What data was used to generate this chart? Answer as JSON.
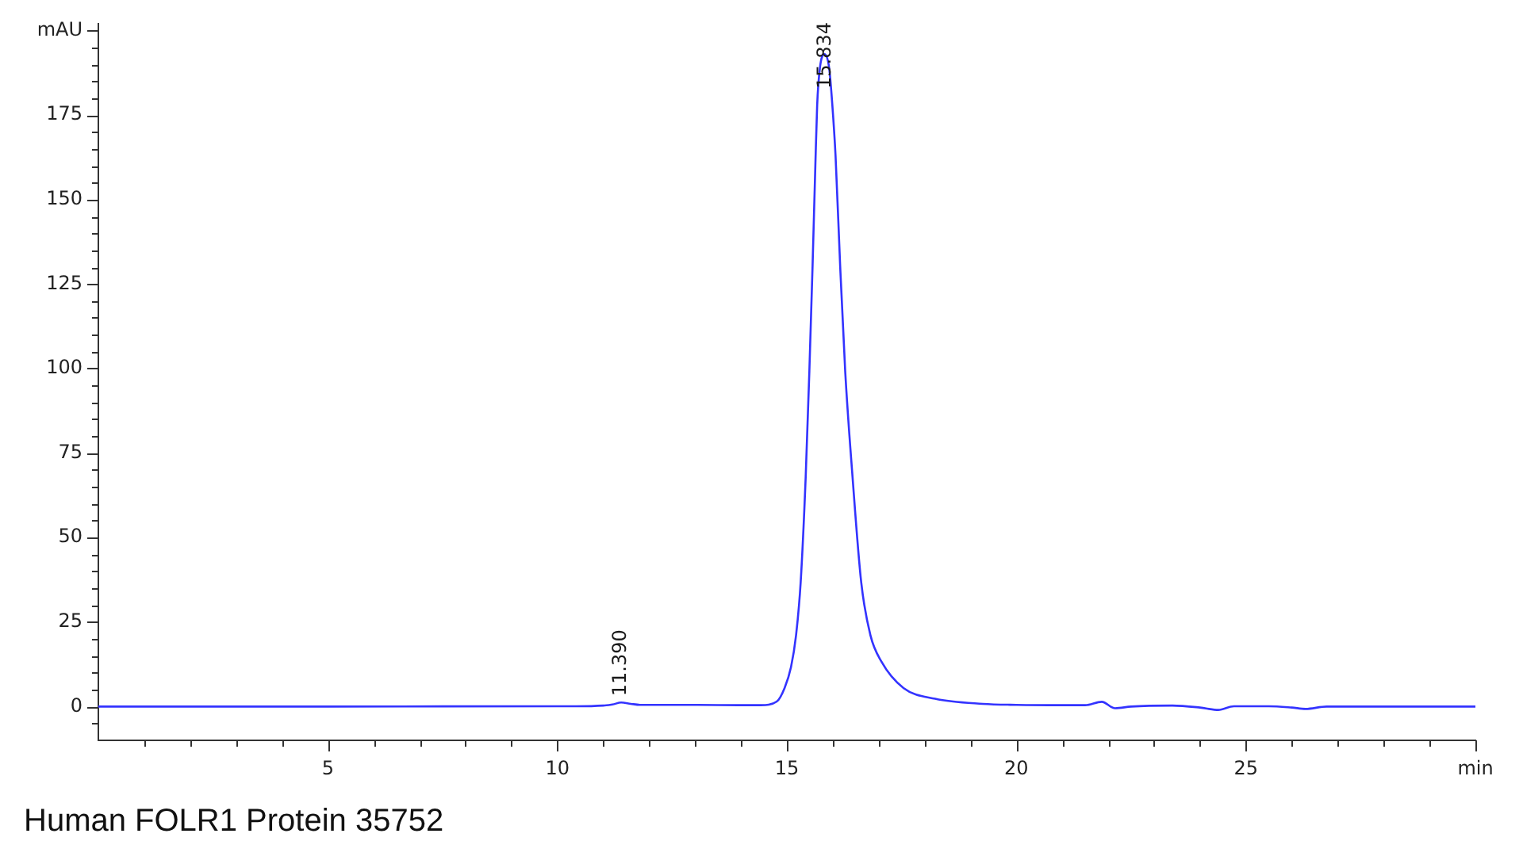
{
  "chart_data": {
    "type": "line",
    "x": [
      0,
      5,
      10,
      10.4,
      11.0,
      11.2,
      11.39,
      11.6,
      11.8,
      13.0,
      14.0,
      14.43,
      14.78,
      14.95,
      15.09,
      15.2,
      15.3,
      15.41,
      15.49,
      15.56,
      15.62,
      15.66,
      15.72,
      15.82,
      15.92,
      15.99,
      16.06,
      16.16,
      16.27,
      16.43,
      16.62,
      16.82,
      17.06,
      17.54,
      18.23,
      19.27,
      20.0,
      21.0,
      21.5,
      21.86,
      22.15,
      22.5,
      23.4,
      24.0,
      24.4,
      24.74,
      25.5,
      26.0,
      26.3,
      26.76,
      28.0,
      30.0
    ],
    "values": [
      0,
      0,
      0.1,
      0.1,
      0.3,
      0.6,
      1.2,
      0.8,
      0.5,
      0.5,
      0.4,
      0.4,
      1.5,
      5.5,
      11.7,
      21.1,
      36.7,
      68,
      99.3,
      130.6,
      160,
      178,
      189,
      193,
      189,
      178,
      163,
      130.6,
      99.3,
      68,
      36.7,
      21.1,
      13.3,
      5.5,
      2.3,
      0.8,
      0.5,
      0.4,
      0.4,
      1.4,
      -0.5,
      0,
      0.3,
      -0.3,
      -1.0,
      0.1,
      0.1,
      -0.3,
      -0.7,
      0,
      0,
      0
    ],
    "color": "#3333ff",
    "xlim": [
      0,
      30
    ],
    "xticks": [
      {
        "value": 1,
        "label": null
      },
      {
        "value": 2,
        "label": null
      },
      {
        "value": 3,
        "label": null
      },
      {
        "value": 4,
        "label": null
      },
      5,
      {
        "value": 6,
        "label": null
      },
      {
        "value": 7,
        "label": null
      },
      {
        "value": 8,
        "label": null
      },
      {
        "value": 9,
        "label": null
      },
      10,
      {
        "value": 11,
        "label": null
      },
      {
        "value": 12,
        "label": null
      },
      {
        "value": 13,
        "label": null
      },
      {
        "value": 14,
        "label": null
      },
      15,
      {
        "value": 16,
        "label": null
      },
      {
        "value": 17,
        "label": null
      },
      {
        "value": 18,
        "label": null
      },
      {
        "value": 19,
        "label": null
      },
      20,
      {
        "value": 21,
        "label": null
      },
      {
        "value": 22,
        "label": null
      },
      {
        "value": 23,
        "label": null
      },
      {
        "value": 24,
        "label": null
      },
      25,
      {
        "value": 26,
        "label": null
      },
      {
        "value": 27,
        "label": null
      },
      {
        "value": 28,
        "label": null
      },
      {
        "value": 29,
        "label": null
      },
      {
        "value": 30,
        "label": "min"
      }
    ],
    "ylim": [
      -10,
      202
    ],
    "yticks": [
      {
        "value": -5,
        "label": null
      },
      0,
      {
        "value": 5,
        "label": null
      },
      {
        "value": 10,
        "label": null
      },
      {
        "value": 15,
        "label": null
      },
      {
        "value": 20,
        "label": null
      },
      25,
      {
        "value": 30,
        "label": null
      },
      {
        "value": 35,
        "label": null
      },
      {
        "value": 40,
        "label": null
      },
      {
        "value": 45,
        "label": null
      },
      50,
      {
        "value": 55,
        "label": null
      },
      {
        "value": 60,
        "label": null
      },
      {
        "value": 65,
        "label": null
      },
      {
        "value": 70,
        "label": null
      },
      75,
      {
        "value": 80,
        "label": null
      },
      {
        "value": 85,
        "label": null
      },
      {
        "value": 90,
        "label": null
      },
      {
        "value": 95,
        "label": null
      },
      100,
      {
        "value": 105,
        "label": null
      },
      {
        "value": 110,
        "label": null
      },
      {
        "value": 115,
        "label": null
      },
      {
        "value": 120,
        "label": null
      },
      125,
      {
        "value": 130,
        "label": null
      },
      {
        "value": 135,
        "label": null
      },
      {
        "value": 140,
        "label": null
      },
      {
        "value": 145,
        "label": null
      },
      150,
      {
        "value": 155,
        "label": null
      },
      {
        "value": 160,
        "label": null
      },
      {
        "value": 165,
        "label": null
      },
      {
        "value": 170,
        "label": null
      },
      175,
      {
        "value": 180,
        "label": null
      },
      {
        "value": 185,
        "label": null
      },
      {
        "value": 190,
        "label": null
      },
      {
        "value": 195,
        "label": null
      },
      {
        "value": 200,
        "label": "mAU"
      }
    ],
    "marker": "none",
    "annotations": [
      {
        "text": "15.834",
        "x": 15.834,
        "y": 193
      },
      {
        "text": "11.390",
        "x": 11.39,
        "y": 1.2
      },
      "Human FOLR1 Protein 35752"
    ]
  }
}
